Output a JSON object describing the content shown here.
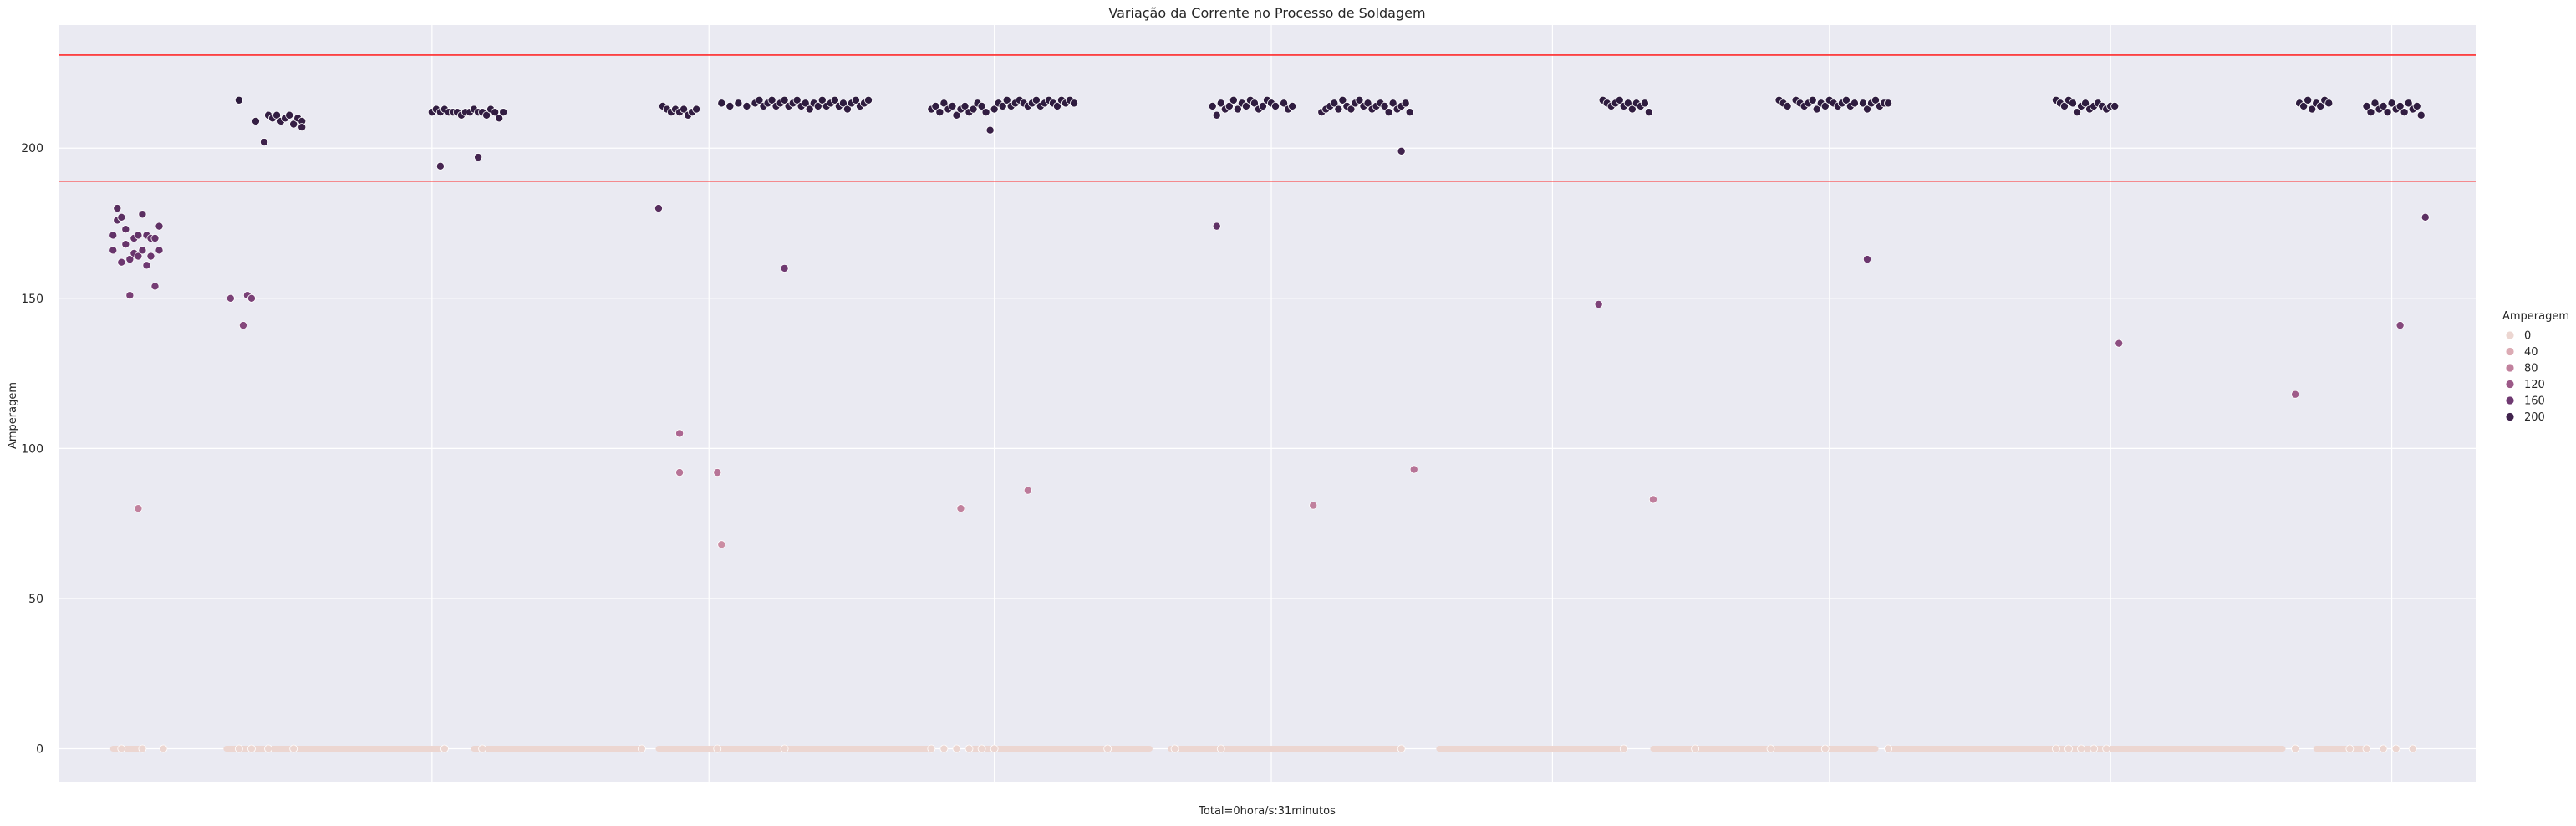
{
  "chart_data": {
    "type": "scatter",
    "title": "Variação da Corrente no Processo de Soldagem",
    "xlabel": "Total=0hora/s:31minutos",
    "ylabel": "Amperagem",
    "ylim": [
      -11,
      241
    ],
    "yticks": [
      0,
      50,
      100,
      150,
      200
    ],
    "xlim": [
      -12,
      564
    ],
    "xgrid": [
      77,
      143,
      211,
      277,
      344,
      410,
      477,
      544
    ],
    "grid": true,
    "hlines": [
      {
        "y": 231,
        "color": "#ff2a2a"
      },
      {
        "y": 189,
        "color": "#ff2a2a"
      }
    ],
    "hue_range": [
      0,
      216
    ],
    "legend": {
      "title": "Amperagem",
      "position": "right",
      "entries": [
        {
          "label": "0",
          "value": 0
        },
        {
          "label": "40",
          "value": 40
        },
        {
          "label": "80",
          "value": 80
        },
        {
          "label": "120",
          "value": 120
        },
        {
          "label": "160",
          "value": 160
        },
        {
          "label": "200",
          "value": 200
        }
      ]
    },
    "zero_segments": [
      [
        1,
        8
      ],
      [
        28,
        80
      ],
      [
        87,
        127
      ],
      [
        131,
        196
      ],
      [
        205,
        248
      ],
      [
        253,
        307
      ],
      [
        317,
        360
      ],
      [
        368,
        421
      ],
      [
        425,
        518
      ],
      [
        526,
        537
      ]
    ],
    "points": [
      [
        1,
        166
      ],
      [
        1,
        171
      ],
      [
        2,
        176
      ],
      [
        2,
        180
      ],
      [
        3,
        177
      ],
      [
        3,
        162
      ],
      [
        4,
        173
      ],
      [
        4,
        168
      ],
      [
        5,
        163
      ],
      [
        5,
        151
      ],
      [
        6,
        170
      ],
      [
        6,
        165
      ],
      [
        7,
        164
      ],
      [
        7,
        171
      ],
      [
        8,
        178
      ],
      [
        8,
        166
      ],
      [
        9,
        171
      ],
      [
        9,
        161
      ],
      [
        10,
        170
      ],
      [
        10,
        164
      ],
      [
        11,
        154
      ],
      [
        11,
        170
      ],
      [
        12,
        166
      ],
      [
        12,
        174
      ],
      [
        7,
        80
      ],
      [
        29,
        150
      ],
      [
        31,
        216
      ],
      [
        32,
        141
      ],
      [
        33,
        151
      ],
      [
        34,
        150
      ],
      [
        35,
        209
      ],
      [
        37,
        202
      ],
      [
        38,
        211
      ],
      [
        39,
        210
      ],
      [
        40,
        211
      ],
      [
        41,
        209
      ],
      [
        42,
        210
      ],
      [
        43,
        211
      ],
      [
        44,
        208
      ],
      [
        45,
        210
      ],
      [
        46,
        209
      ],
      [
        46,
        207
      ],
      [
        77,
        212
      ],
      [
        78,
        213
      ],
      [
        79,
        194
      ],
      [
        79,
        212
      ],
      [
        80,
        213
      ],
      [
        81,
        212
      ],
      [
        82,
        212
      ],
      [
        83,
        212
      ],
      [
        84,
        211
      ],
      [
        85,
        212
      ],
      [
        86,
        212
      ],
      [
        87,
        213
      ],
      [
        88,
        212
      ],
      [
        88,
        197
      ],
      [
        89,
        212
      ],
      [
        90,
        211
      ],
      [
        91,
        213
      ],
      [
        92,
        212
      ],
      [
        93,
        210
      ],
      [
        94,
        212
      ],
      [
        131,
        180
      ],
      [
        132,
        214
      ],
      [
        133,
        213
      ],
      [
        134,
        212
      ],
      [
        135,
        213
      ],
      [
        136,
        212
      ],
      [
        137,
        213
      ],
      [
        138,
        211
      ],
      [
        139,
        212
      ],
      [
        140,
        213
      ],
      [
        136,
        105
      ],
      [
        136,
        92
      ],
      [
        145,
        92
      ],
      [
        146,
        68
      ],
      [
        146,
        215
      ],
      [
        148,
        214
      ],
      [
        150,
        215
      ],
      [
        152,
        214
      ],
      [
        154,
        215
      ],
      [
        155,
        216
      ],
      [
        156,
        214
      ],
      [
        157,
        215
      ],
      [
        158,
        216
      ],
      [
        159,
        214
      ],
      [
        160,
        215
      ],
      [
        161,
        160
      ],
      [
        161,
        216
      ],
      [
        162,
        214
      ],
      [
        163,
        215
      ],
      [
        164,
        216
      ],
      [
        165,
        214
      ],
      [
        166,
        215
      ],
      [
        167,
        213
      ],
      [
        168,
        215
      ],
      [
        169,
        214
      ],
      [
        170,
        216
      ],
      [
        171,
        214
      ],
      [
        172,
        215
      ],
      [
        173,
        216
      ],
      [
        174,
        214
      ],
      [
        175,
        215
      ],
      [
        176,
        213
      ],
      [
        177,
        215
      ],
      [
        178,
        216
      ],
      [
        179,
        214
      ],
      [
        180,
        215
      ],
      [
        181,
        216
      ],
      [
        196,
        213
      ],
      [
        197,
        214
      ],
      [
        198,
        212
      ],
      [
        199,
        215
      ],
      [
        200,
        213
      ],
      [
        201,
        214
      ],
      [
        202,
        211
      ],
      [
        203,
        213
      ],
      [
        204,
        214
      ],
      [
        205,
        212
      ],
      [
        206,
        213
      ],
      [
        207,
        215
      ],
      [
        208,
        214
      ],
      [
        209,
        212
      ],
      [
        210,
        206
      ],
      [
        211,
        213
      ],
      [
        212,
        215
      ],
      [
        213,
        214
      ],
      [
        214,
        216
      ],
      [
        215,
        214
      ],
      [
        216,
        215
      ],
      [
        217,
        216
      ],
      [
        218,
        215
      ],
      [
        219,
        214
      ],
      [
        220,
        215
      ],
      [
        221,
        216
      ],
      [
        222,
        214
      ],
      [
        223,
        215
      ],
      [
        224,
        216
      ],
      [
        225,
        215
      ],
      [
        226,
        214
      ],
      [
        227,
        216
      ],
      [
        228,
        215
      ],
      [
        229,
        216
      ],
      [
        230,
        215
      ],
      [
        203,
        80
      ],
      [
        219,
        86
      ],
      [
        263,
        214
      ],
      [
        264,
        174
      ],
      [
        264,
        211
      ],
      [
        265,
        215
      ],
      [
        266,
        213
      ],
      [
        267,
        214
      ],
      [
        268,
        216
      ],
      [
        269,
        213
      ],
      [
        270,
        215
      ],
      [
        271,
        214
      ],
      [
        272,
        216
      ],
      [
        273,
        215
      ],
      [
        274,
        213
      ],
      [
        275,
        214
      ],
      [
        276,
        216
      ],
      [
        277,
        215
      ],
      [
        278,
        214
      ],
      [
        280,
        215
      ],
      [
        281,
        213
      ],
      [
        282,
        214
      ],
      [
        287,
        81
      ],
      [
        289,
        212
      ],
      [
        290,
        213
      ],
      [
        291,
        214
      ],
      [
        292,
        215
      ],
      [
        293,
        213
      ],
      [
        294,
        216
      ],
      [
        295,
        214
      ],
      [
        296,
        213
      ],
      [
        297,
        215
      ],
      [
        298,
        216
      ],
      [
        299,
        214
      ],
      [
        300,
        215
      ],
      [
        301,
        213
      ],
      [
        302,
        214
      ],
      [
        303,
        215
      ],
      [
        304,
        214
      ],
      [
        305,
        212
      ],
      [
        306,
        215
      ],
      [
        307,
        213
      ],
      [
        308,
        214
      ],
      [
        308,
        199
      ],
      [
        309,
        215
      ],
      [
        310,
        212
      ],
      [
        311,
        93
      ],
      [
        355,
        148
      ],
      [
        356,
        216
      ],
      [
        357,
        215
      ],
      [
        358,
        214
      ],
      [
        359,
        215
      ],
      [
        360,
        216
      ],
      [
        361,
        214
      ],
      [
        362,
        215
      ],
      [
        363,
        213
      ],
      [
        364,
        215
      ],
      [
        365,
        214
      ],
      [
        366,
        215
      ],
      [
        367,
        212
      ],
      [
        368,
        83
      ],
      [
        398,
        216
      ],
      [
        399,
        215
      ],
      [
        400,
        214
      ],
      [
        402,
        216
      ],
      [
        403,
        215
      ],
      [
        404,
        214
      ],
      [
        405,
        215
      ],
      [
        406,
        216
      ],
      [
        407,
        213
      ],
      [
        408,
        215
      ],
      [
        409,
        214
      ],
      [
        410,
        216
      ],
      [
        411,
        215
      ],
      [
        412,
        214
      ],
      [
        413,
        215
      ],
      [
        414,
        216
      ],
      [
        415,
        214
      ],
      [
        416,
        215
      ],
      [
        418,
        215
      ],
      [
        419,
        163
      ],
      [
        419,
        213
      ],
      [
        420,
        215
      ],
      [
        421,
        216
      ],
      [
        422,
        214
      ],
      [
        423,
        215
      ],
      [
        424,
        215
      ],
      [
        464,
        216
      ],
      [
        465,
        215
      ],
      [
        466,
        214
      ],
      [
        467,
        216
      ],
      [
        468,
        215
      ],
      [
        469,
        212
      ],
      [
        470,
        214
      ],
      [
        471,
        215
      ],
      [
        472,
        213
      ],
      [
        473,
        214
      ],
      [
        474,
        215
      ],
      [
        475,
        214
      ],
      [
        476,
        213
      ],
      [
        477,
        214
      ],
      [
        478,
        214
      ],
      [
        479,
        135
      ],
      [
        521,
        118
      ],
      [
        522,
        215
      ],
      [
        523,
        214
      ],
      [
        524,
        216
      ],
      [
        525,
        213
      ],
      [
        526,
        215
      ],
      [
        527,
        214
      ],
      [
        528,
        216
      ],
      [
        529,
        215
      ],
      [
        538,
        214
      ],
      [
        539,
        212
      ],
      [
        540,
        215
      ],
      [
        541,
        213
      ],
      [
        542,
        214
      ],
      [
        543,
        212
      ],
      [
        544,
        215
      ],
      [
        545,
        213
      ],
      [
        546,
        141
      ],
      [
        546,
        214
      ],
      [
        547,
        212
      ],
      [
        548,
        215
      ],
      [
        549,
        213
      ],
      [
        550,
        214
      ],
      [
        551,
        211
      ],
      [
        552,
        177
      ]
    ],
    "zero_markers": [
      3,
      8,
      13,
      31,
      34,
      38,
      44,
      80,
      89,
      127,
      145,
      161,
      196,
      199,
      202,
      205,
      208,
      211,
      238,
      254,
      265,
      308,
      361,
      378,
      396,
      409,
      424,
      464,
      467,
      470,
      473,
      476,
      521,
      534,
      538,
      542,
      545,
      549
    ]
  }
}
